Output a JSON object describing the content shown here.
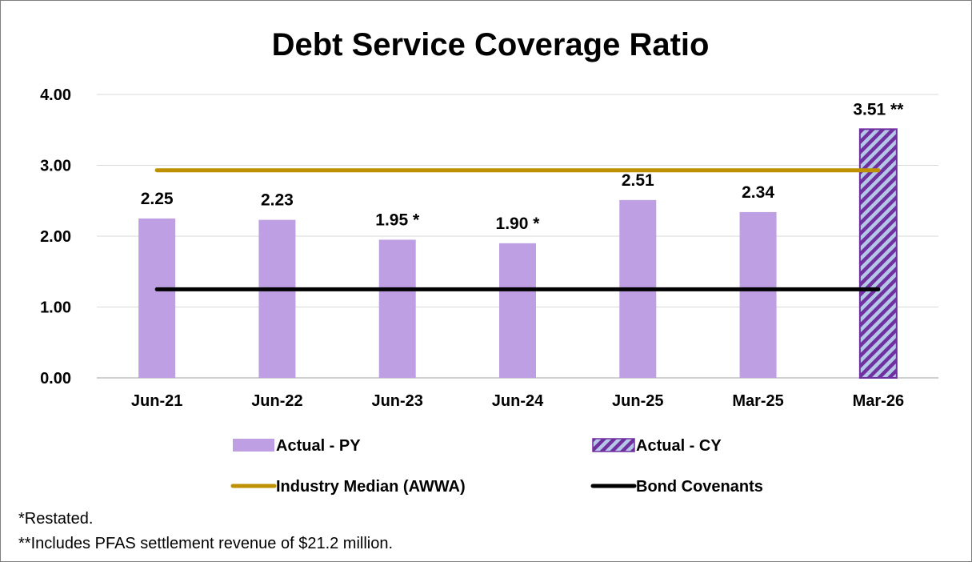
{
  "chart_data": {
    "type": "bar",
    "title": "Debt Service Coverage Ratio",
    "categories": [
      "Jun-21",
      "Jun-22",
      "Jun-23",
      "Jun-24",
      "Jun-25",
      "Mar-25",
      "Mar-26"
    ],
    "series": [
      {
        "name": "Actual - PY",
        "type": "bar",
        "color": "#bf9fe4",
        "values": [
          2.25,
          2.23,
          1.95,
          1.9,
          2.51,
          2.34,
          null
        ],
        "labels": [
          "2.25",
          "2.23",
          "1.95 *",
          "1.90 *",
          "2.51",
          "2.34",
          ""
        ]
      },
      {
        "name": "Actual - CY",
        "type": "bar",
        "pattern": "diagonal-stripes",
        "color": "#7030a0",
        "stripe_color": "#b4c7e7",
        "values": [
          null,
          null,
          null,
          null,
          null,
          null,
          3.51
        ],
        "labels": [
          "",
          "",
          "",
          "",
          "",
          "",
          "3.51 **"
        ]
      },
      {
        "name": "Industry Median (AWWA)",
        "type": "line",
        "color": "#bf9000",
        "values": [
          2.93,
          2.93,
          2.93,
          2.93,
          2.93,
          2.93,
          2.93
        ]
      },
      {
        "name": "Bond Covenants",
        "type": "line",
        "color": "#000000",
        "values": [
          1.25,
          1.25,
          1.25,
          1.25,
          1.25,
          1.25,
          1.25
        ]
      }
    ],
    "ylim": [
      0,
      4
    ],
    "yticks": [
      "0.00",
      "1.00",
      "2.00",
      "3.00",
      "4.00"
    ],
    "ytick_values": [
      0,
      1,
      2,
      3,
      4
    ],
    "grid": true,
    "legend_position": "bottom",
    "xlabel": "",
    "ylabel": ""
  },
  "footnotes": [
    "*Restated.",
    "**Includes PFAS settlement revenue of $21.2 million."
  ]
}
